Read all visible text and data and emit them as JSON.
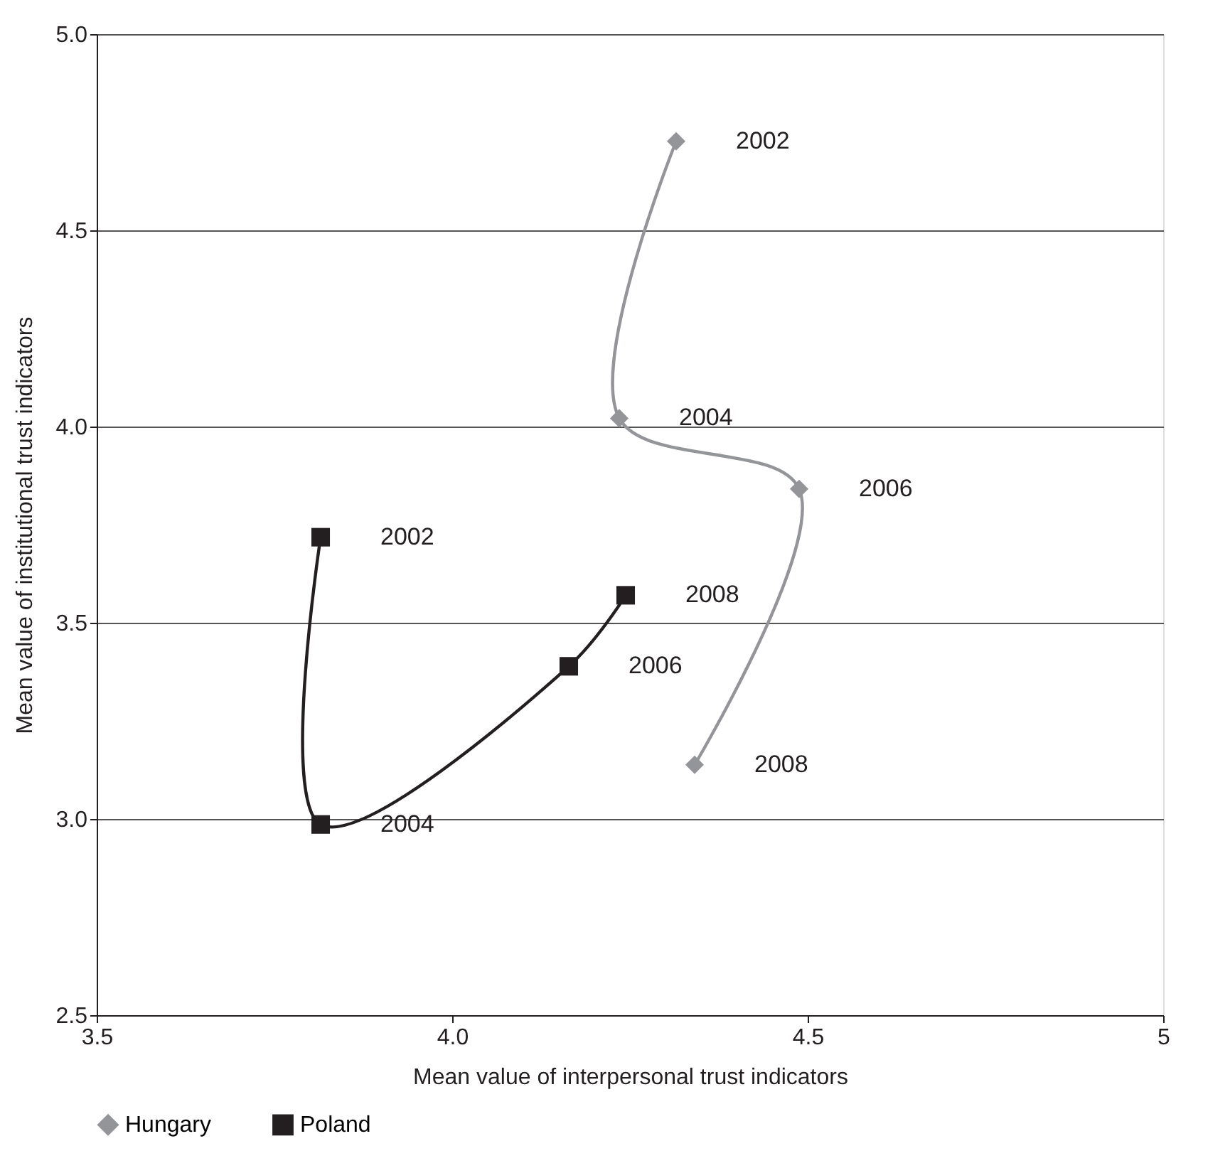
{
  "chart_data": {
    "type": "line",
    "xlabel": "Mean value of interpersonal trust indicators",
    "ylabel": "Mean value of institutional trust indicators",
    "series": [
      {
        "name": "Hungary",
        "color": "#939598",
        "marker": "diamond",
        "x": [
          4.315,
          4.235,
          4.488,
          4.341
        ],
        "values": [
          4.727,
          4.021,
          3.841,
          3.138
        ]
      },
      {
        "name": "Poland",
        "color": "#231f20",
        "marker": "square",
        "x": [
          3.815,
          3.815,
          4.164,
          4.244
        ],
        "values": [
          3.718,
          2.986,
          3.389,
          3.57
        ]
      }
    ],
    "annotations": [
      {
        "text": "2002",
        "x": 4.315,
        "y": 4.727
      },
      {
        "text": "2004",
        "x": 4.235,
        "y": 4.021
      },
      {
        "text": "2006",
        "x": 4.488,
        "y": 3.841
      },
      {
        "text": "2008",
        "x": 4.341,
        "y": 3.138
      },
      {
        "text": "2002",
        "x": 3.815,
        "y": 3.718
      },
      {
        "text": "2004",
        "x": 3.815,
        "y": 2.986
      },
      {
        "text": "2006",
        "x": 4.164,
        "y": 3.389
      },
      {
        "text": "2008",
        "x": 4.244,
        "y": 3.57
      }
    ],
    "xlim": [
      3.5,
      5
    ],
    "xticks": [
      3.5,
      {
        "value": 4,
        "label": "4.0"
      },
      4.5,
      {
        "value": 5,
        "label": "5"
      }
    ],
    "ylim": [
      2.5,
      5
    ],
    "yticks": [
      2.5,
      {
        "value": 3,
        "label": "3.0"
      },
      3.5,
      {
        "value": 4,
        "label": "4.0"
      },
      4.5,
      {
        "value": 5,
        "label": "5.0"
      }
    ],
    "grid": "y",
    "legend": "bottom",
    "line_style": "solid"
  }
}
